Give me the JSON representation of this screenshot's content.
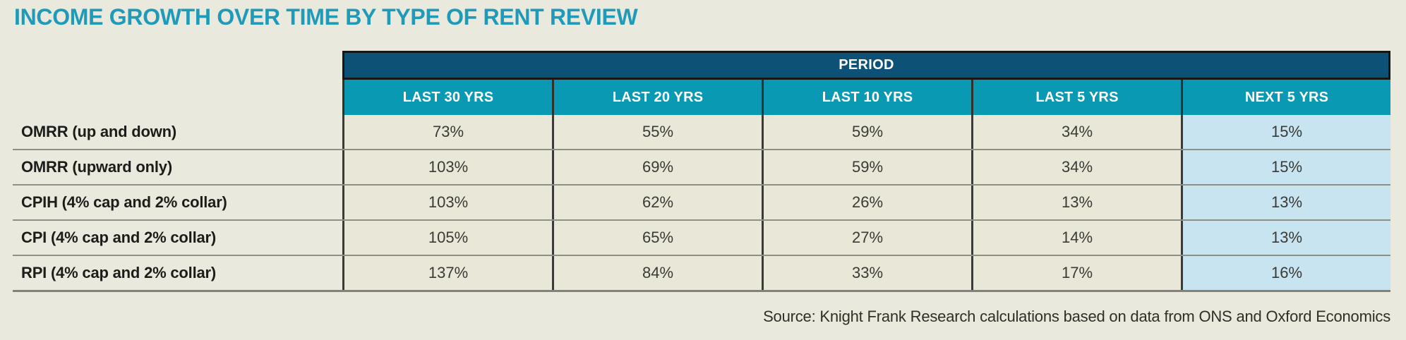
{
  "title": "INCOME GROWTH OVER TIME BY TYPE OF RENT REVIEW",
  "source": "Source: Knight Frank Research calculations based on data from ONS and Oxford Economics",
  "colors": {
    "title_teal": "#1f9ab8",
    "period_navy": "#0d5176",
    "header_teal": "#0999b3",
    "highlight_blue": "#c7e4f0",
    "cell_beige": "#e8e7d8",
    "page_background": "#e9e9de"
  },
  "chart_data": {
    "type": "table",
    "title": "INCOME GROWTH OVER TIME BY TYPE OF RENT REVIEW",
    "column_group_header": "PERIOD",
    "columns": [
      "LAST 30 YRS",
      "LAST 20 YRS",
      "LAST 10 YRS",
      "LAST 5 YRS",
      "NEXT 5 YRS"
    ],
    "highlighted_column": "NEXT 5 YRS",
    "rows": [
      {
        "label": "OMRR (up and down)",
        "values": [
          "73%",
          "55%",
          "59%",
          "34%",
          "15%"
        ]
      },
      {
        "label": "OMRR (upward only)",
        "values": [
          "103%",
          "69%",
          "59%",
          "34%",
          "15%"
        ]
      },
      {
        "label": "CPIH (4% cap and 2% collar)",
        "values": [
          "103%",
          "62%",
          "26%",
          "13%",
          "13%"
        ]
      },
      {
        "label": "CPI (4% cap and 2% collar)",
        "values": [
          "105%",
          "65%",
          "27%",
          "14%",
          "13%"
        ]
      },
      {
        "label": "RPI (4% cap and 2% collar)",
        "values": [
          "137%",
          "84%",
          "33%",
          "17%",
          "16%"
        ]
      }
    ],
    "source": "Source: Knight Frank Research calculations based on data from ONS and Oxford Economics"
  }
}
